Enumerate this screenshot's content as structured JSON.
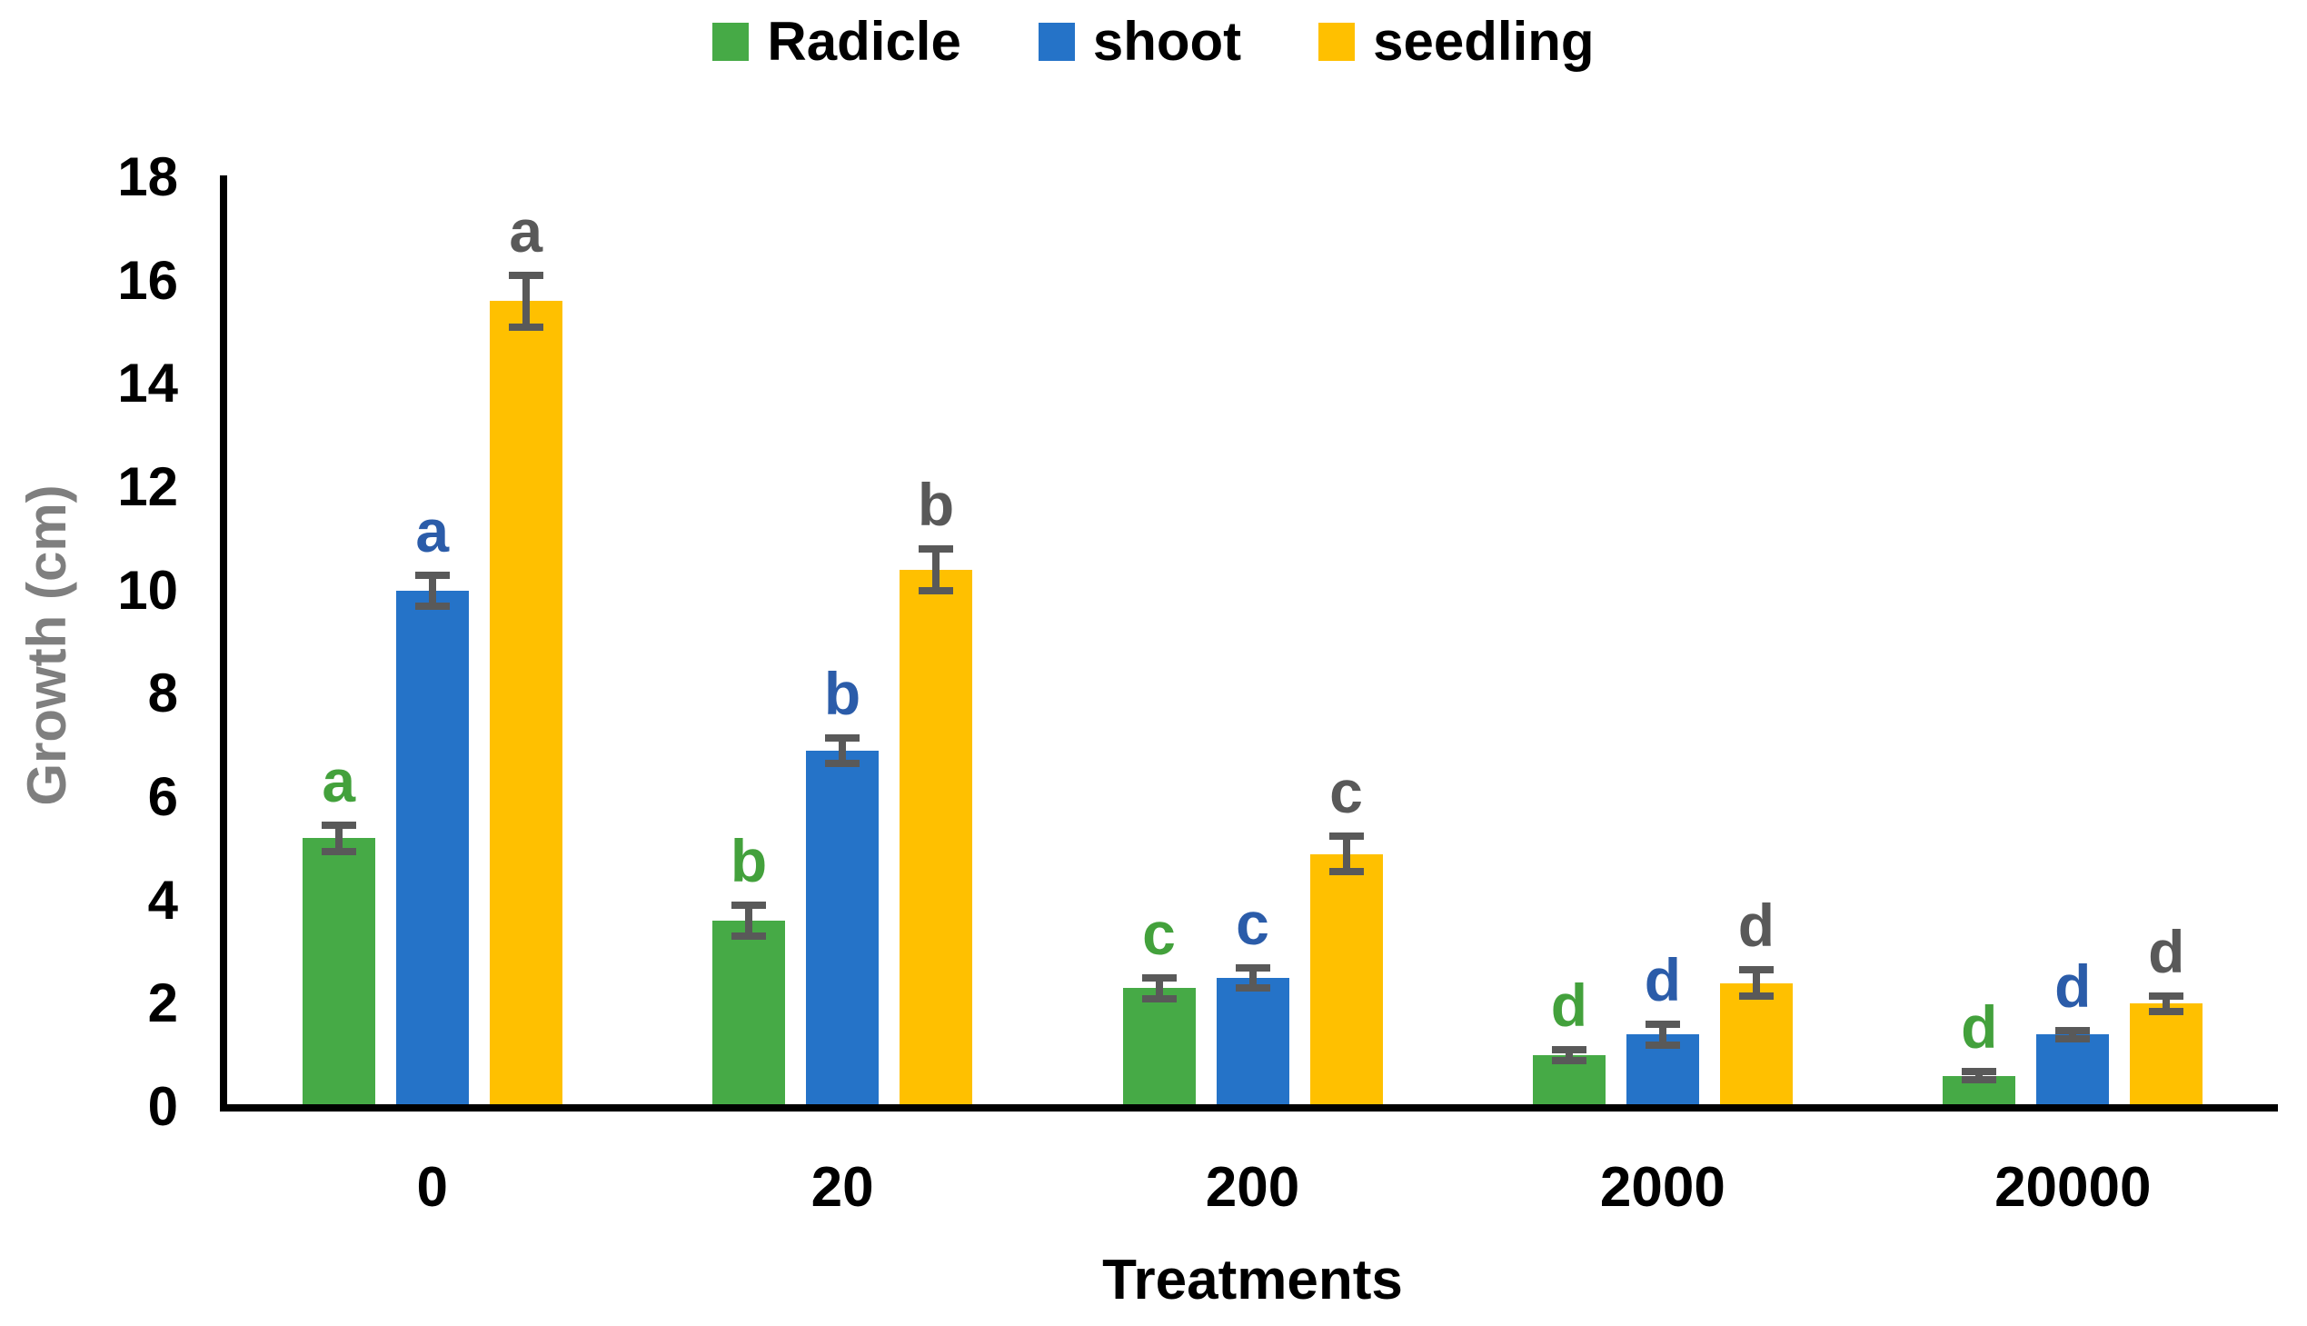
{
  "chart_data": {
    "type": "bar",
    "title": "",
    "xlabel": "Treatments",
    "ylabel": "Growth (cm)",
    "ylabel_color": "#7F7F7F",
    "axis_color": "#000000",
    "error_color": "#595959",
    "grid": false,
    "legend_position": "top-center",
    "ylim": [
      0,
      18
    ],
    "ytick_step": 2,
    "categories": [
      "0",
      "20",
      "200",
      "2000",
      "20000"
    ],
    "series": [
      {
        "name": "Radicle",
        "color": "#46AA46",
        "letter_color": "#43A13C",
        "values": [
          5.2,
          3.6,
          2.3,
          1.0,
          0.6
        ],
        "errors": [
          0.25,
          0.3,
          0.2,
          0.1,
          0.08
        ],
        "letters": [
          "a",
          "b",
          "c",
          "d",
          "d"
        ]
      },
      {
        "name": "shoot",
        "color": "#2573C8",
        "letter_color": "#2B5CA9",
        "values": [
          10.0,
          6.9,
          2.5,
          1.4,
          1.4
        ],
        "errors": [
          0.3,
          0.25,
          0.2,
          0.2,
          0.08
        ],
        "letters": [
          "a",
          "b",
          "c",
          "d",
          "d"
        ]
      },
      {
        "name": "seedling",
        "color": "#FFC000",
        "letter_color": "#595959",
        "values": [
          15.6,
          10.4,
          4.9,
          2.4,
          2.0
        ],
        "errors": [
          0.5,
          0.4,
          0.35,
          0.25,
          0.15
        ],
        "letters": [
          "a",
          "b",
          "c",
          "d",
          "d"
        ]
      }
    ]
  }
}
